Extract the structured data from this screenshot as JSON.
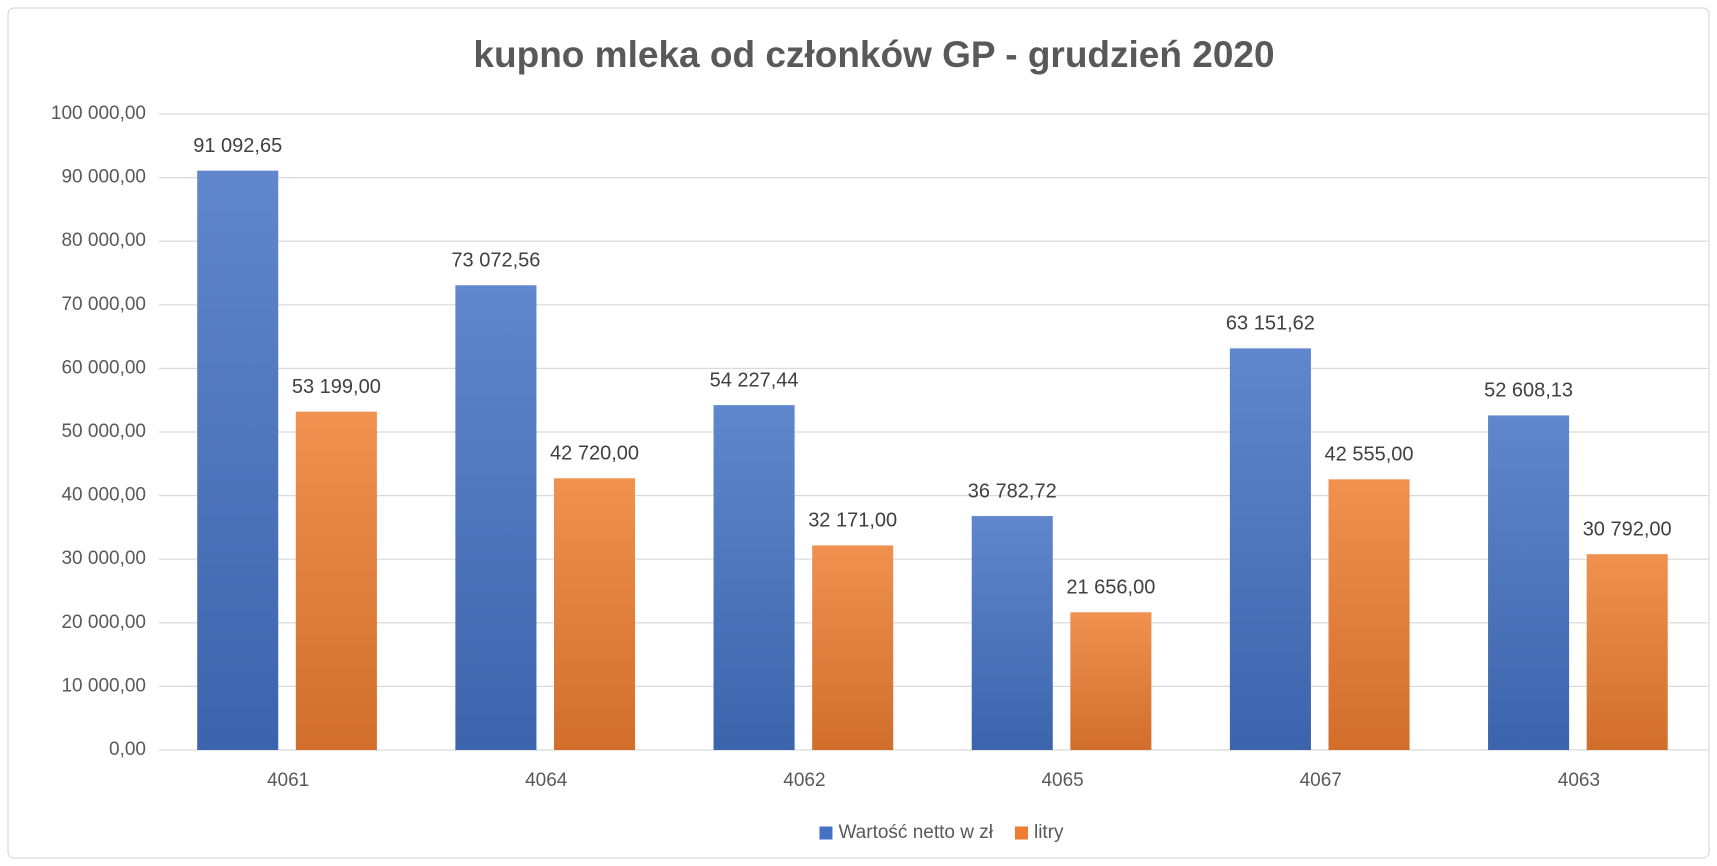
{
  "chart_data": {
    "type": "bar",
    "title": "kupno mleka od członków GP - grudzień  2020",
    "categories": [
      "4061",
      "4064",
      "4062",
      "4065",
      "4067",
      "4063"
    ],
    "series": [
      {
        "name": "Wartość netto w zł",
        "color": "#4472c4",
        "values": [
          91092.65,
          73072.56,
          54227.44,
          36782.72,
          63151.62,
          52608.13
        ],
        "value_labels": [
          "91 092,65",
          "73 072,56",
          "54 227,44",
          "36 782,72",
          "63 151,62",
          "52 608,13"
        ]
      },
      {
        "name": "litry",
        "color": "#ed7d31",
        "values": [
          53199,
          42720,
          32171,
          21656,
          42555,
          30792
        ],
        "value_labels": [
          "53 199,00",
          "42 720,00",
          "32 171,00",
          "21 656,00",
          "42 555,00",
          "30 792,00"
        ]
      }
    ],
    "ylim": [
      0,
      100000
    ],
    "yticks": [
      {
        "value": 0,
        "label": "0,00"
      },
      {
        "value": 10000,
        "label": "10 000,00"
      },
      {
        "value": 20000,
        "label": "20 000,00"
      },
      {
        "value": 30000,
        "label": "30 000,00"
      },
      {
        "value": 40000,
        "label": "40 000,00"
      },
      {
        "value": 50000,
        "label": "50 000,00"
      },
      {
        "value": 60000,
        "label": "60 000,00"
      },
      {
        "value": 70000,
        "label": "70 000,00"
      },
      {
        "value": 80000,
        "label": "80 000,00"
      },
      {
        "value": 90000,
        "label": "90 000,00"
      },
      {
        "value": 100000,
        "label": "100 000,00"
      }
    ],
    "grid": true,
    "legend": "bottom"
  }
}
